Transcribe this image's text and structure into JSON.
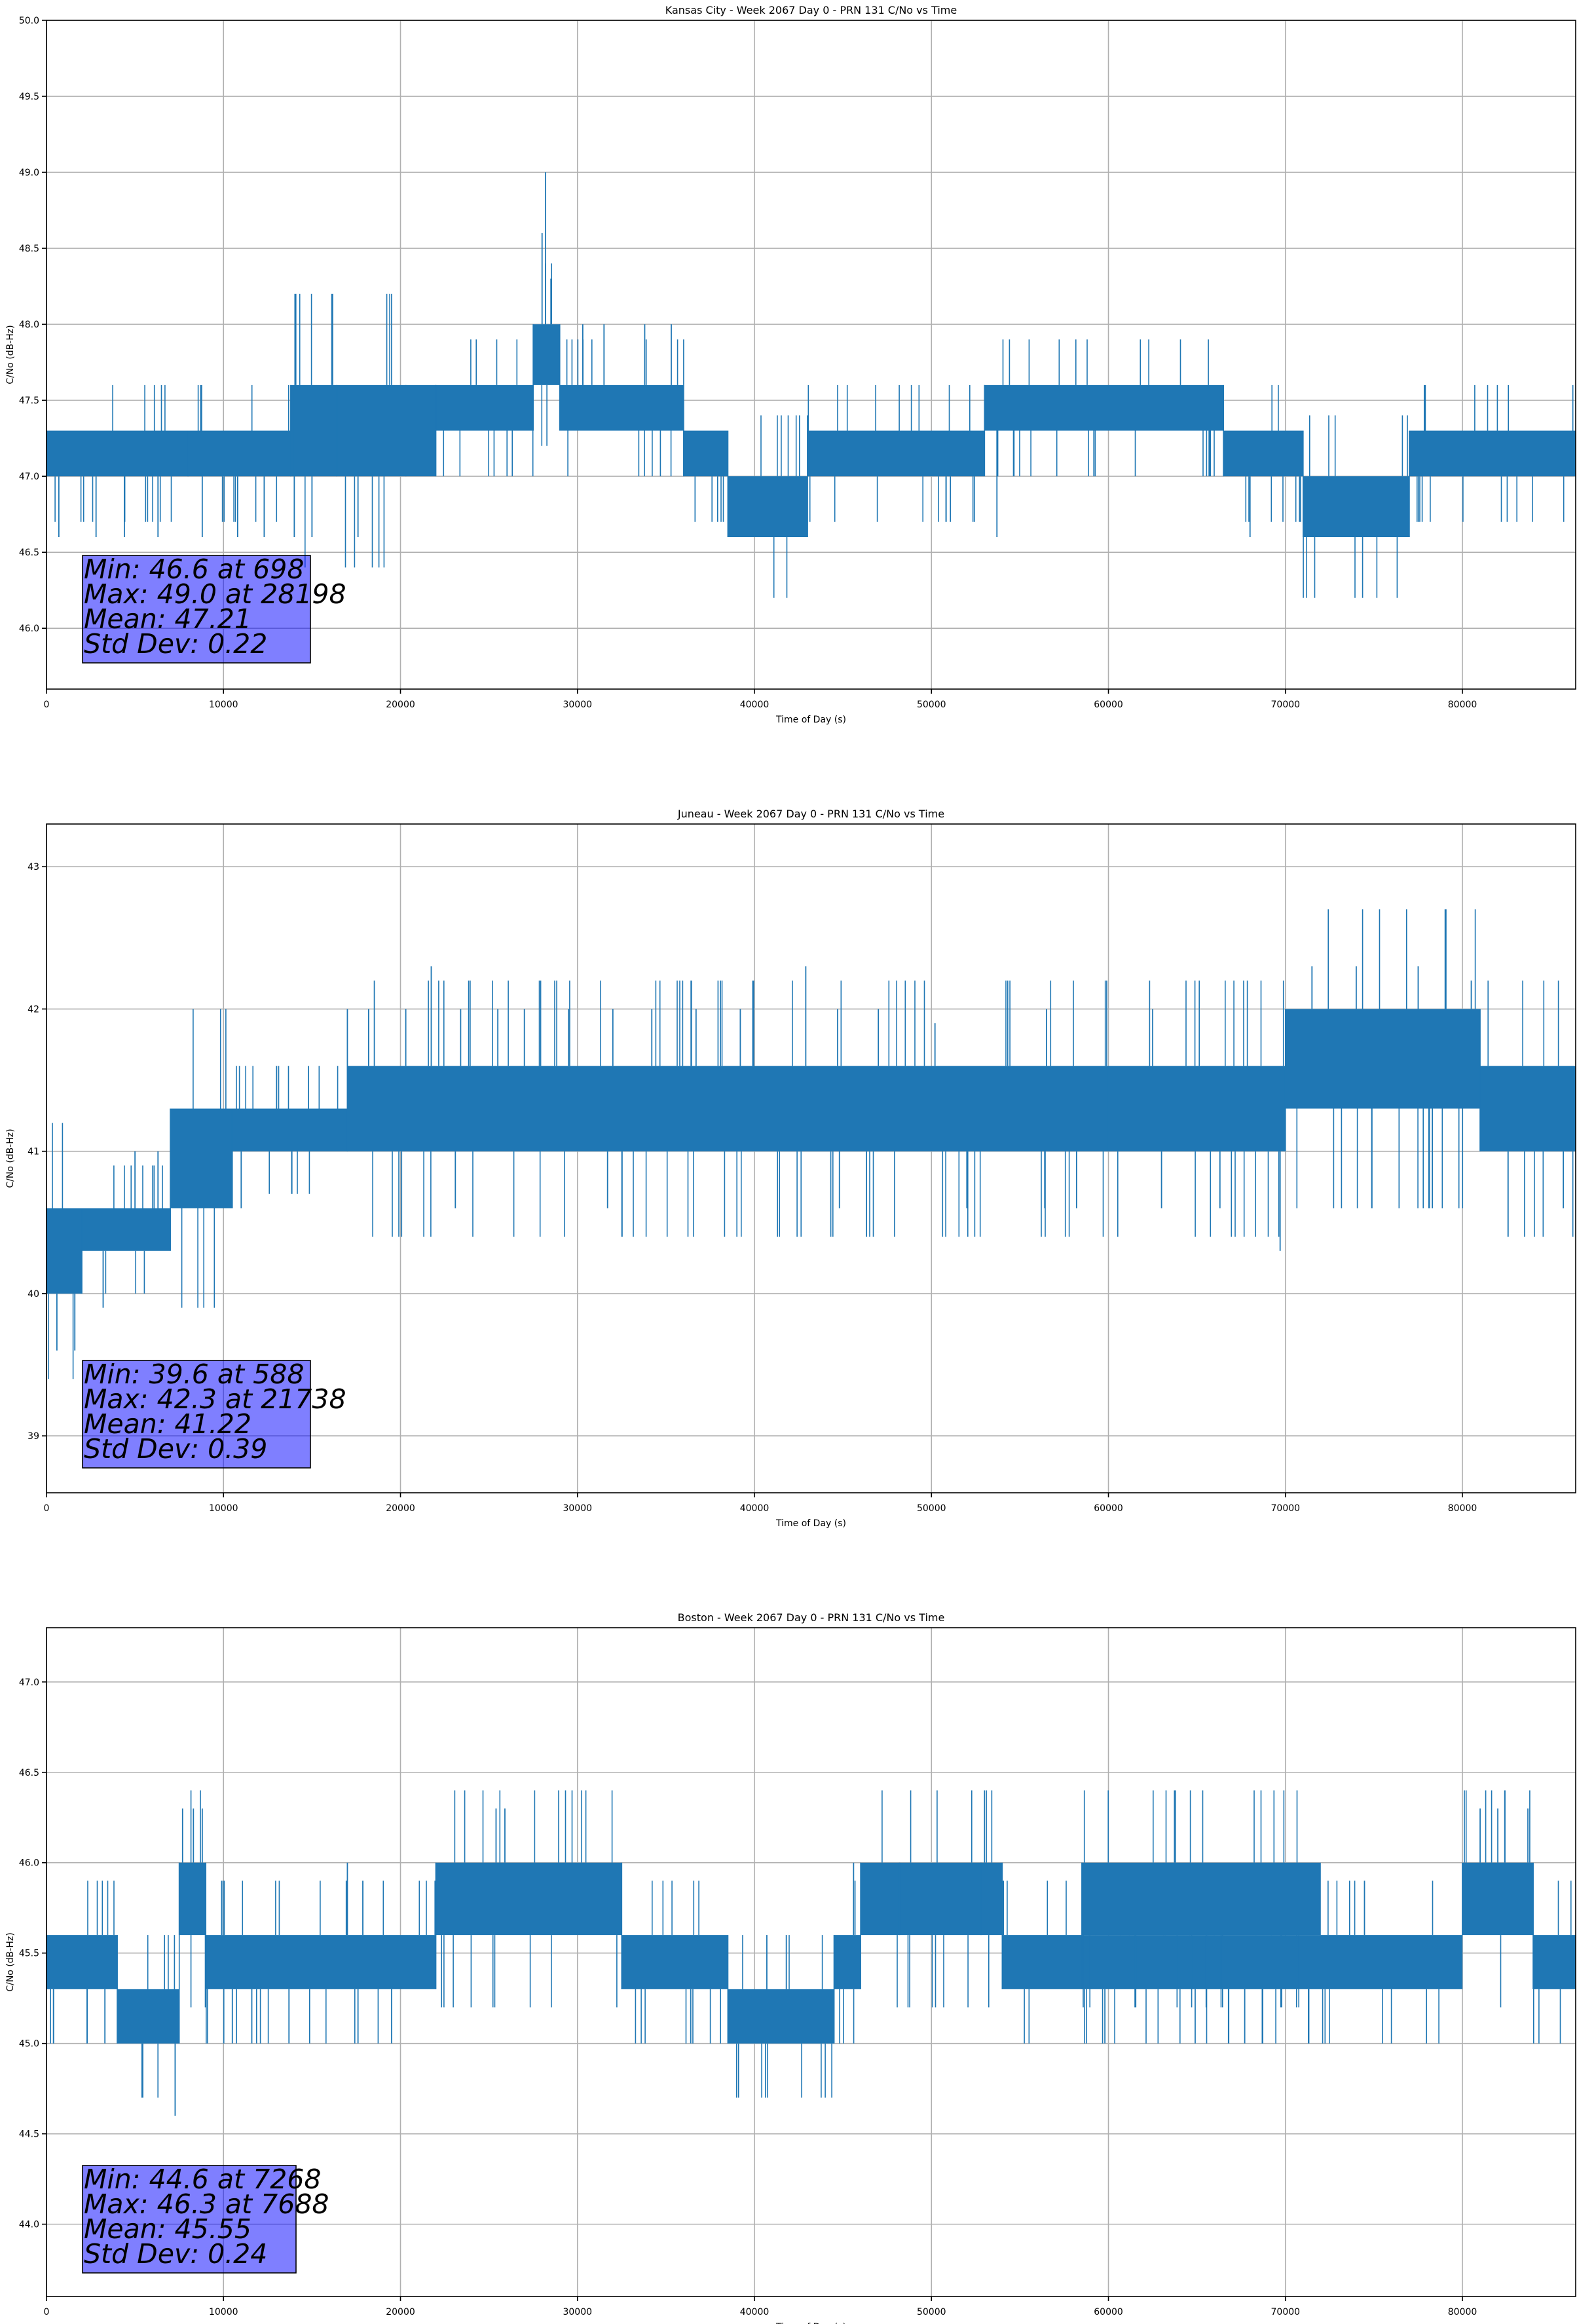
{
  "chart_data": [
    {
      "type": "line",
      "title": "Kansas City - Week 2067 Day 0 - PRN 131 C/No vs Time",
      "xlabel": "Time of Day (s)",
      "ylabel": "C/No (dB-Hz)",
      "xlim": [
        0,
        86400
      ],
      "ylim": [
        45.6,
        50.0
      ],
      "xticks": [
        0,
        10000,
        20000,
        30000,
        40000,
        50000,
        60000,
        70000,
        80000
      ],
      "yticks": [
        "46.0",
        "46.5",
        "47.0",
        "47.5",
        "48.0",
        "48.5",
        "49.0",
        "49.5",
        "50.0"
      ],
      "grid": true,
      "line_color": "#1f77b4",
      "stats": [
        "Min: 46.6 at 698",
        "Max: 49.0 at 28198",
        "Mean: 47.21",
        "Std Dev: 0.22"
      ],
      "bands": [
        {
          "x0": 0,
          "x1": 8000,
          "lo": 47.0,
          "hi": 47.3
        },
        {
          "x0": 8000,
          "x1": 13800,
          "lo": 47.0,
          "hi": 47.3
        },
        {
          "x0": 13800,
          "x1": 22000,
          "lo": 47.0,
          "hi": 47.6
        },
        {
          "x0": 22000,
          "x1": 27500,
          "lo": 47.3,
          "hi": 47.6
        },
        {
          "x0": 27500,
          "x1": 29000,
          "lo": 47.6,
          "hi": 48.0
        },
        {
          "x0": 29000,
          "x1": 36000,
          "lo": 47.3,
          "hi": 47.6
        },
        {
          "x0": 36000,
          "x1": 38500,
          "lo": 47.0,
          "hi": 47.3
        },
        {
          "x0": 38500,
          "x1": 43000,
          "lo": 46.6,
          "hi": 47.0
        },
        {
          "x0": 43000,
          "x1": 53000,
          "lo": 47.0,
          "hi": 47.3
        },
        {
          "x0": 53000,
          "x1": 66500,
          "lo": 47.3,
          "hi": 47.6
        },
        {
          "x0": 66500,
          "x1": 71000,
          "lo": 47.0,
          "hi": 47.3
        },
        {
          "x0": 71000,
          "x1": 77000,
          "lo": 46.6,
          "hi": 47.0
        },
        {
          "x0": 77000,
          "x1": 86400,
          "lo": 47.0,
          "hi": 47.3
        }
      ],
      "spikes": [
        {
          "x": 698,
          "y": 46.6
        },
        {
          "x": 2800,
          "y": 46.6
        },
        {
          "x": 4400,
          "y": 46.6
        },
        {
          "x": 6300,
          "y": 46.6
        },
        {
          "x": 8800,
          "y": 46.6
        },
        {
          "x": 10800,
          "y": 46.6
        },
        {
          "x": 12300,
          "y": 46.6
        },
        {
          "x": 14000,
          "y": 46.6
        },
        {
          "x": 15000,
          "y": 46.6
        },
        {
          "x": 17600,
          "y": 46.6
        },
        {
          "x": 14000,
          "y": 47.6
        },
        {
          "x": 16400,
          "y": 47.6
        },
        {
          "x": 20300,
          "y": 47.6
        },
        {
          "x": 28000,
          "y": 48.6
        },
        {
          "x": 28198,
          "y": 49.0
        },
        {
          "x": 28500,
          "y": 48.3
        },
        {
          "x": 30300,
          "y": 48.0
        },
        {
          "x": 31500,
          "y": 48.0
        },
        {
          "x": 33800,
          "y": 48.0
        },
        {
          "x": 35300,
          "y": 48.0
        },
        {
          "x": 53700,
          "y": 46.6
        },
        {
          "x": 68000,
          "y": 46.6
        },
        {
          "x": 76900,
          "y": 46.6
        }
      ]
    },
    {
      "type": "line",
      "title": "Juneau - Week 2067 Day 0 - PRN 131 C/No vs Time",
      "xlabel": "Time of Day (s)",
      "ylabel": "C/No (dB-Hz)",
      "xlim": [
        0,
        86400
      ],
      "ylim": [
        38.6,
        43.3
      ],
      "xticks": [
        0,
        10000,
        20000,
        30000,
        40000,
        50000,
        60000,
        70000,
        80000
      ],
      "yticks": [
        "39",
        "40",
        "41",
        "42",
        "43"
      ],
      "grid": true,
      "line_color": "#1f77b4",
      "stats": [
        "Min: 39.6 at 588",
        "Max: 42.3 at 21738",
        "Mean: 41.22",
        "Std Dev: 0.39"
      ],
      "bands": [
        {
          "x0": 0,
          "x1": 2000,
          "lo": 40.0,
          "hi": 40.6
        },
        {
          "x0": 2000,
          "x1": 7000,
          "lo": 40.3,
          "hi": 40.6
        },
        {
          "x0": 7000,
          "x1": 10500,
          "lo": 40.6,
          "hi": 41.3
        },
        {
          "x0": 10500,
          "x1": 17000,
          "lo": 41.0,
          "hi": 41.3
        },
        {
          "x0": 17000,
          "x1": 60000,
          "lo": 41.0,
          "hi": 41.6
        },
        {
          "x0": 60000,
          "x1": 70000,
          "lo": 41.0,
          "hi": 41.6
        },
        {
          "x0": 70000,
          "x1": 81000,
          "lo": 41.3,
          "hi": 42.0
        },
        {
          "x0": 81000,
          "x1": 86400,
          "lo": 41.0,
          "hi": 41.6
        }
      ],
      "spikes": [
        {
          "x": 588,
          "y": 39.6
        },
        {
          "x": 1600,
          "y": 39.6
        },
        {
          "x": 3200,
          "y": 39.9
        },
        {
          "x": 5000,
          "y": 41.0
        },
        {
          "x": 6300,
          "y": 41.0
        },
        {
          "x": 11000,
          "y": 40.6
        },
        {
          "x": 13000,
          "y": 41.6
        },
        {
          "x": 14800,
          "y": 41.6
        },
        {
          "x": 17000,
          "y": 42.0
        },
        {
          "x": 18200,
          "y": 42.0
        },
        {
          "x": 20300,
          "y": 42.0
        },
        {
          "x": 21738,
          "y": 42.3
        },
        {
          "x": 23400,
          "y": 42.0
        },
        {
          "x": 25500,
          "y": 42.0
        },
        {
          "x": 27000,
          "y": 42.0
        },
        {
          "x": 29500,
          "y": 42.0
        },
        {
          "x": 32000,
          "y": 42.0
        },
        {
          "x": 34200,
          "y": 42.0
        },
        {
          "x": 36700,
          "y": 42.0
        },
        {
          "x": 39200,
          "y": 42.0
        },
        {
          "x": 42900,
          "y": 42.3
        },
        {
          "x": 44700,
          "y": 42.0
        },
        {
          "x": 47000,
          "y": 42.0
        },
        {
          "x": 50200,
          "y": 41.9
        },
        {
          "x": 56500,
          "y": 42.0
        },
        {
          "x": 62500,
          "y": 42.0
        },
        {
          "x": 71500,
          "y": 42.3
        },
        {
          "x": 74000,
          "y": 42.3
        },
        {
          "x": 77500,
          "y": 42.3
        },
        {
          "x": 80500,
          "y": 42.2
        },
        {
          "x": 63000,
          "y": 40.6
        },
        {
          "x": 52000,
          "y": 40.6
        },
        {
          "x": 56400,
          "y": 40.6
        },
        {
          "x": 66300,
          "y": 40.6
        },
        {
          "x": 69700,
          "y": 40.3
        },
        {
          "x": 23100,
          "y": 40.6
        },
        {
          "x": 31700,
          "y": 40.6
        },
        {
          "x": 85700,
          "y": 40.6
        },
        {
          "x": 78300,
          "y": 40.6
        },
        {
          "x": 58200,
          "y": 40.6
        },
        {
          "x": 44800,
          "y": 40.6
        }
      ]
    },
    {
      "type": "line",
      "title": "Boston - Week 2067 Day 0 - PRN 131 C/No vs Time",
      "xlabel": "Time of Day (s)",
      "ylabel": "C/No (dB-Hz)",
      "xlim": [
        0,
        86400
      ],
      "ylim": [
        43.6,
        47.3
      ],
      "xticks": [
        0,
        10000,
        20000,
        30000,
        40000,
        50000,
        60000,
        70000,
        80000
      ],
      "yticks": [
        "44.0",
        "44.5",
        "45.0",
        "45.5",
        "46.0",
        "46.5",
        "47.0"
      ],
      "grid": true,
      "line_color": "#1f77b4",
      "stats": [
        "Min: 44.6 at 7268",
        "Max: 46.3 at 7688",
        "Mean: 45.55",
        "Std Dev: 0.24"
      ],
      "bands": [
        {
          "x0": 0,
          "x1": 4000,
          "lo": 45.3,
          "hi": 45.6
        },
        {
          "x0": 4000,
          "x1": 7500,
          "lo": 45.0,
          "hi": 45.3
        },
        {
          "x0": 7500,
          "x1": 9000,
          "lo": 45.6,
          "hi": 46.0
        },
        {
          "x0": 9000,
          "x1": 22000,
          "lo": 45.3,
          "hi": 45.6
        },
        {
          "x0": 22000,
          "x1": 32500,
          "lo": 45.6,
          "hi": 46.0
        },
        {
          "x0": 32500,
          "x1": 38500,
          "lo": 45.3,
          "hi": 45.6
        },
        {
          "x0": 38500,
          "x1": 44500,
          "lo": 45.0,
          "hi": 45.3
        },
        {
          "x0": 44500,
          "x1": 46000,
          "lo": 45.3,
          "hi": 45.6
        },
        {
          "x0": 46000,
          "x1": 54000,
          "lo": 45.6,
          "hi": 46.0
        },
        {
          "x0": 54000,
          "x1": 80000,
          "lo": 45.3,
          "hi": 45.6
        },
        {
          "x0": 58500,
          "x1": 72000,
          "lo": 45.6,
          "hi": 46.0
        },
        {
          "x0": 80000,
          "x1": 84000,
          "lo": 45.6,
          "hi": 46.0
        },
        {
          "x0": 84000,
          "x1": 86400,
          "lo": 45.3,
          "hi": 45.6
        }
      ],
      "spikes": [
        {
          "x": 400,
          "y": 45.0
        },
        {
          "x": 2300,
          "y": 45.0
        },
        {
          "x": 3300,
          "y": 45.0
        },
        {
          "x": 7268,
          "y": 44.6
        },
        {
          "x": 7688,
          "y": 46.3
        },
        {
          "x": 8300,
          "y": 46.3
        },
        {
          "x": 8800,
          "y": 46.3
        },
        {
          "x": 10500,
          "y": 45.0
        },
        {
          "x": 11600,
          "y": 45.0
        },
        {
          "x": 13700,
          "y": 45.0
        },
        {
          "x": 17000,
          "y": 46.0
        },
        {
          "x": 17600,
          "y": 45.0
        },
        {
          "x": 19500,
          "y": 45.0
        },
        {
          "x": 25400,
          "y": 46.3
        },
        {
          "x": 25900,
          "y": 46.3
        },
        {
          "x": 36400,
          "y": 45.0
        },
        {
          "x": 40700,
          "y": 45.6
        },
        {
          "x": 41800,
          "y": 45.6
        },
        {
          "x": 45600,
          "y": 46.0
        },
        {
          "x": 48200,
          "y": 46.0
        },
        {
          "x": 52800,
          "y": 46.0
        },
        {
          "x": 59800,
          "y": 45.0
        },
        {
          "x": 64900,
          "y": 45.0
        },
        {
          "x": 67700,
          "y": 45.0
        },
        {
          "x": 71300,
          "y": 45.0
        },
        {
          "x": 81000,
          "y": 46.3
        },
        {
          "x": 82000,
          "y": 46.3
        },
        {
          "x": 83700,
          "y": 46.3
        },
        {
          "x": 85300,
          "y": 45.3
        }
      ]
    }
  ]
}
